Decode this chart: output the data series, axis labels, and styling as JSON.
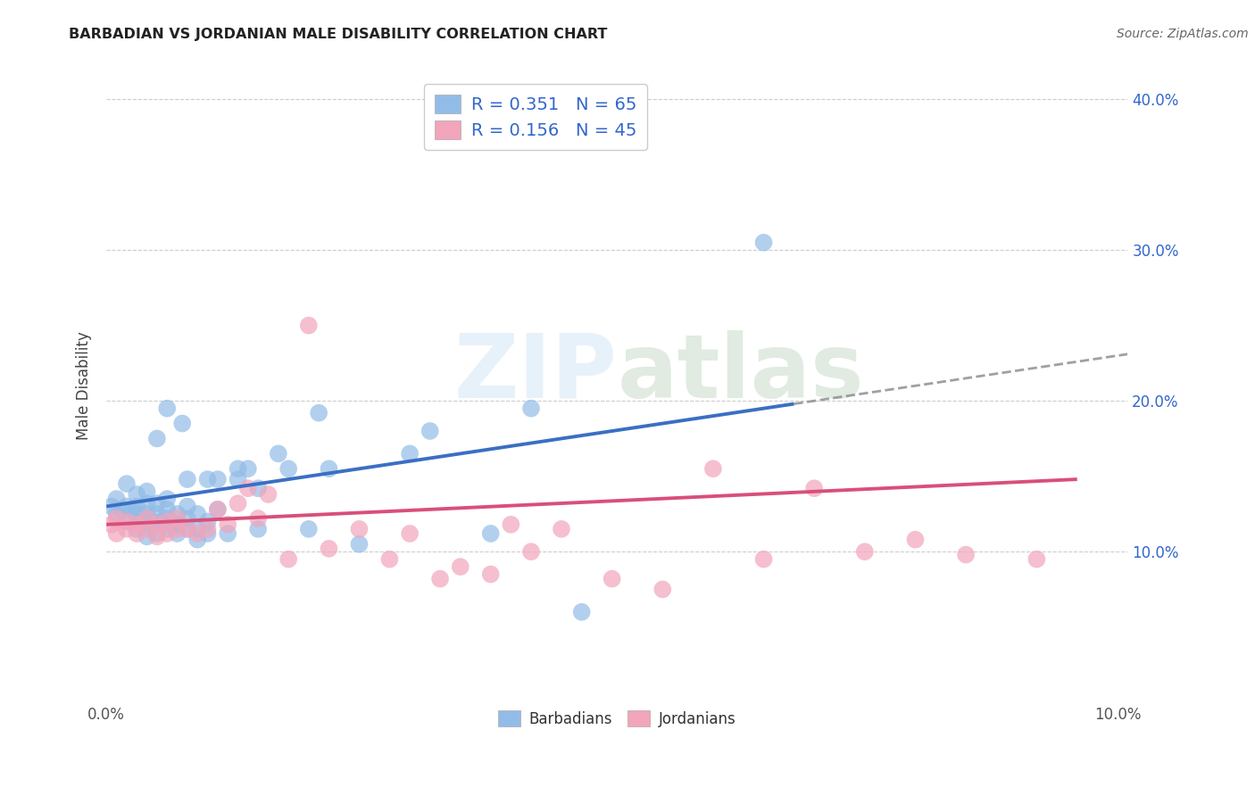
{
  "title": "BARBADIAN VS JORDANIAN MALE DISABILITY CORRELATION CHART",
  "source": "Source: ZipAtlas.com",
  "ylabel": "Male Disability",
  "watermark": "ZIPatlas",
  "xlim": [
    0.0,
    0.101
  ],
  "ylim": [
    0.0,
    0.42
  ],
  "x_tick_positions": [
    0.0,
    0.02,
    0.04,
    0.06,
    0.08,
    0.1
  ],
  "x_tick_labels": [
    "0.0%",
    "",
    "",
    "",
    "",
    "10.0%"
  ],
  "y_tick_positions": [
    0.0,
    0.1,
    0.2,
    0.3,
    0.4
  ],
  "y_tick_labels_right": [
    "",
    "10.0%",
    "20.0%",
    "30.0%",
    "40.0%"
  ],
  "blue_R": 0.351,
  "blue_N": 65,
  "pink_R": 0.156,
  "pink_N": 45,
  "blue_color": "#92bce8",
  "pink_color": "#f2a5bb",
  "blue_line_color": "#3a6fc4",
  "pink_line_color": "#d94f7a",
  "legend_R_color": "#3366cc",
  "legend_N_color": "#3366cc",
  "blue_points_x": [
    0.0005,
    0.001,
    0.001,
    0.0015,
    0.002,
    0.002,
    0.002,
    0.0025,
    0.003,
    0.003,
    0.003,
    0.003,
    0.0035,
    0.004,
    0.004,
    0.004,
    0.004,
    0.004,
    0.0045,
    0.005,
    0.005,
    0.005,
    0.005,
    0.005,
    0.0055,
    0.006,
    0.006,
    0.006,
    0.006,
    0.006,
    0.0065,
    0.007,
    0.007,
    0.007,
    0.0075,
    0.008,
    0.008,
    0.008,
    0.008,
    0.009,
    0.009,
    0.009,
    0.01,
    0.01,
    0.01,
    0.011,
    0.011,
    0.012,
    0.013,
    0.013,
    0.014,
    0.015,
    0.015,
    0.017,
    0.018,
    0.02,
    0.021,
    0.022,
    0.025,
    0.03,
    0.032,
    0.038,
    0.047,
    0.065,
    0.042
  ],
  "blue_points_y": [
    0.13,
    0.125,
    0.135,
    0.128,
    0.12,
    0.13,
    0.145,
    0.128,
    0.115,
    0.125,
    0.13,
    0.138,
    0.122,
    0.11,
    0.118,
    0.125,
    0.132,
    0.14,
    0.12,
    0.112,
    0.118,
    0.125,
    0.132,
    0.175,
    0.12,
    0.115,
    0.122,
    0.128,
    0.135,
    0.195,
    0.118,
    0.112,
    0.118,
    0.125,
    0.185,
    0.115,
    0.122,
    0.13,
    0.148,
    0.108,
    0.115,
    0.125,
    0.112,
    0.12,
    0.148,
    0.128,
    0.148,
    0.112,
    0.148,
    0.155,
    0.155,
    0.115,
    0.142,
    0.165,
    0.155,
    0.115,
    0.192,
    0.155,
    0.105,
    0.165,
    0.18,
    0.112,
    0.06,
    0.305,
    0.195
  ],
  "pink_points_x": [
    0.0005,
    0.001,
    0.001,
    0.002,
    0.002,
    0.003,
    0.003,
    0.004,
    0.004,
    0.005,
    0.005,
    0.006,
    0.006,
    0.007,
    0.007,
    0.008,
    0.009,
    0.01,
    0.011,
    0.012,
    0.013,
    0.014,
    0.015,
    0.016,
    0.018,
    0.02,
    0.022,
    0.025,
    0.028,
    0.03,
    0.033,
    0.035,
    0.038,
    0.04,
    0.042,
    0.045,
    0.05,
    0.055,
    0.06,
    0.065,
    0.07,
    0.075,
    0.08,
    0.085,
    0.092
  ],
  "pink_points_y": [
    0.118,
    0.112,
    0.122,
    0.115,
    0.12,
    0.112,
    0.118,
    0.115,
    0.122,
    0.11,
    0.118,
    0.112,
    0.12,
    0.115,
    0.122,
    0.115,
    0.112,
    0.115,
    0.128,
    0.118,
    0.132,
    0.142,
    0.122,
    0.138,
    0.095,
    0.25,
    0.102,
    0.115,
    0.095,
    0.112,
    0.082,
    0.09,
    0.085,
    0.118,
    0.1,
    0.115,
    0.082,
    0.075,
    0.155,
    0.095,
    0.142,
    0.1,
    0.108,
    0.098,
    0.095
  ]
}
